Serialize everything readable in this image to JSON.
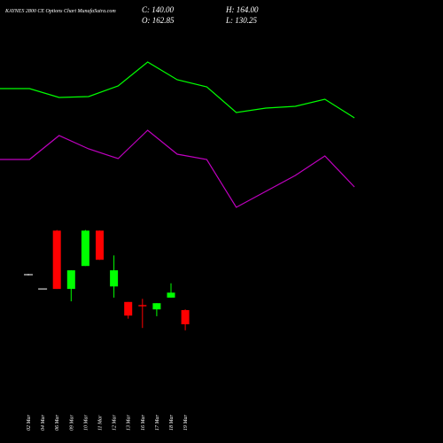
{
  "chart_data": [
    {
      "type": "candlestick",
      "title": "KAYNES 2800 CE Options Chart MunafaSutra.com",
      "close_label": "C: 140.00",
      "high_label": "H: 164.00",
      "open_label": "O: 162.85",
      "low_label": "L: 130.25",
      "categories": [
        "02 Mar",
        "04 Mar",
        "06 Mar",
        "09 Mar",
        "10 Mar",
        "11 Mar",
        "12 Mar",
        "13 Mar",
        "16 Mar",
        "17 Mar",
        "18 Mar",
        "19 Mar"
      ],
      "open": [
        220,
        197,
        291,
        197,
        234,
        291,
        201,
        176,
        171,
        164,
        183,
        162.85
      ],
      "high": [
        221,
        197,
        292,
        227,
        292,
        291,
        251,
        176,
        181,
        174,
        206,
        164
      ],
      "low": [
        219,
        197,
        197,
        177,
        234,
        244,
        183,
        149,
        134,
        153,
        183,
        130.25
      ],
      "close": [
        220,
        197,
        197,
        227,
        291,
        244,
        227,
        154,
        169,
        174,
        191,
        140
      ],
      "up_color": "#00ff00",
      "down_color": "#ff0000",
      "flat_color": "#ffffff",
      "ylim": [
        100,
        400
      ]
    },
    {
      "type": "line",
      "categories": [
        null,
        null,
        null,
        null,
        null,
        null,
        null,
        null,
        null,
        null,
        null,
        null,
        null
      ],
      "series": [
        {
          "color": "#00ff00",
          "values": [
            150,
            150,
            140,
            141,
            153,
            180,
            160,
            152,
            123,
            128,
            130,
            138,
            117
          ]
        },
        {
          "color": "#c000c0",
          "values": [
            70,
            70,
            97,
            82,
            71,
            103,
            76,
            70,
            16,
            34,
            52,
            74,
            39
          ]
        }
      ],
      "ylim": [
        0,
        200
      ]
    }
  ]
}
